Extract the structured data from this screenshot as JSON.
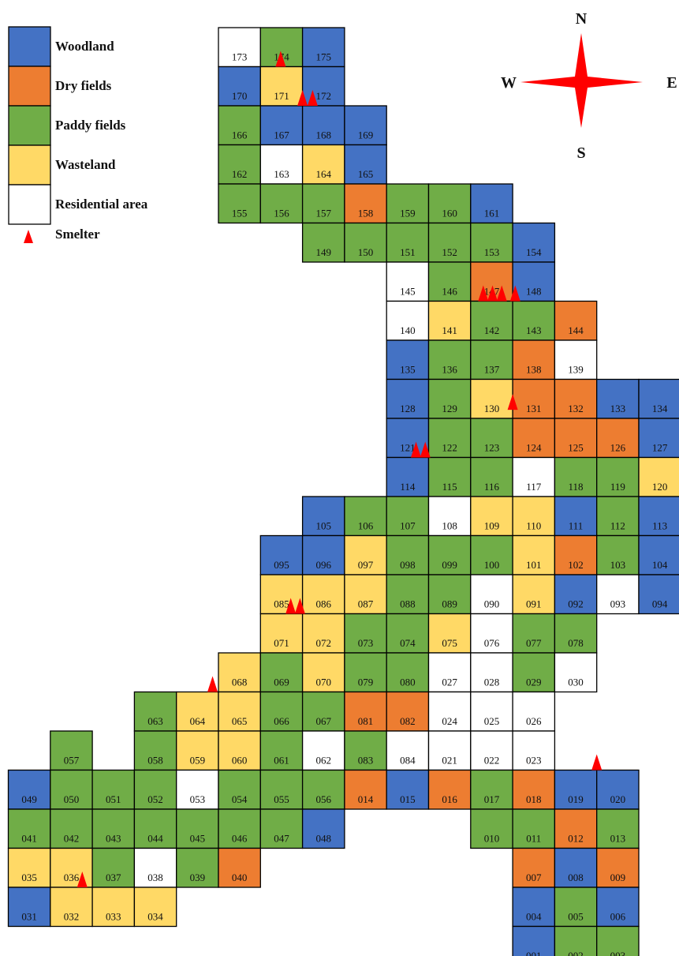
{
  "colors": {
    "woodland": "#4472c4",
    "dry": "#ed7d31",
    "paddy": "#70ad47",
    "waste": "#ffd966",
    "res": "#ffffff",
    "smelter": "#ff0000",
    "border": "#000000"
  },
  "legend": [
    {
      "key": "woodland",
      "label": "Woodland"
    },
    {
      "key": "dry",
      "label": "Dry fields"
    },
    {
      "key": "paddy",
      "label": "Paddy fields"
    },
    {
      "key": "waste",
      "label": "Wasteland"
    },
    {
      "key": "res",
      "label": "Residential area"
    },
    {
      "key": "smelter",
      "label": "Smelter",
      "icon": "smelter-triangle-icon"
    }
  ],
  "compass": {
    "icon": "compass-rose-icon",
    "n": "N",
    "s": "S",
    "w": "W",
    "e": "E"
  },
  "cells": [
    {
      "id": "173",
      "col": 0,
      "row": 0,
      "type": "res"
    },
    {
      "id": "174",
      "col": 1,
      "row": 0,
      "type": "paddy"
    },
    {
      "id": "175",
      "col": 2,
      "row": 0,
      "type": "woodland"
    },
    {
      "id": "170",
      "col": 0,
      "row": 1,
      "type": "woodland"
    },
    {
      "id": "171",
      "col": 1,
      "row": 1,
      "type": "waste"
    },
    {
      "id": "172",
      "col": 2,
      "row": 1,
      "type": "woodland"
    },
    {
      "id": "166",
      "col": 0,
      "row": 2,
      "type": "paddy"
    },
    {
      "id": "167",
      "col": 1,
      "row": 2,
      "type": "woodland"
    },
    {
      "id": "168",
      "col": 2,
      "row": 2,
      "type": "woodland"
    },
    {
      "id": "169",
      "col": 3,
      "row": 2,
      "type": "woodland"
    },
    {
      "id": "162",
      "col": 0,
      "row": 3,
      "type": "paddy"
    },
    {
      "id": "163",
      "col": 1,
      "row": 3,
      "type": "res"
    },
    {
      "id": "164",
      "col": 2,
      "row": 3,
      "type": "waste"
    },
    {
      "id": "165",
      "col": 3,
      "row": 3,
      "type": "woodland"
    },
    {
      "id": "155",
      "col": 0,
      "row": 4,
      "type": "paddy"
    },
    {
      "id": "156",
      "col": 1,
      "row": 4,
      "type": "paddy"
    },
    {
      "id": "157",
      "col": 2,
      "row": 4,
      "type": "paddy"
    },
    {
      "id": "158",
      "col": 3,
      "row": 4,
      "type": "dry"
    },
    {
      "id": "159",
      "col": 4,
      "row": 4,
      "type": "paddy"
    },
    {
      "id": "160",
      "col": 5,
      "row": 4,
      "type": "paddy"
    },
    {
      "id": "161",
      "col": 6,
      "row": 4,
      "type": "woodland"
    },
    {
      "id": "149",
      "col": 2,
      "row": 5,
      "type": "paddy"
    },
    {
      "id": "150",
      "col": 3,
      "row": 5,
      "type": "paddy"
    },
    {
      "id": "151",
      "col": 4,
      "row": 5,
      "type": "paddy"
    },
    {
      "id": "152",
      "col": 5,
      "row": 5,
      "type": "paddy"
    },
    {
      "id": "153",
      "col": 6,
      "row": 5,
      "type": "paddy"
    },
    {
      "id": "154",
      "col": 7,
      "row": 5,
      "type": "woodland"
    },
    {
      "id": "145",
      "col": 4,
      "row": 6,
      "type": "res"
    },
    {
      "id": "146",
      "col": 5,
      "row": 6,
      "type": "paddy"
    },
    {
      "id": "147",
      "col": 6,
      "row": 6,
      "type": "dry"
    },
    {
      "id": "148",
      "col": 7,
      "row": 6,
      "type": "woodland"
    },
    {
      "id": "140",
      "col": 4,
      "row": 7,
      "type": "res"
    },
    {
      "id": "141",
      "col": 5,
      "row": 7,
      "type": "waste"
    },
    {
      "id": "142",
      "col": 6,
      "row": 7,
      "type": "paddy"
    },
    {
      "id": "143",
      "col": 7,
      "row": 7,
      "type": "paddy"
    },
    {
      "id": "144",
      "col": 8,
      "row": 7,
      "type": "dry"
    },
    {
      "id": "135",
      "col": 4,
      "row": 8,
      "type": "woodland"
    },
    {
      "id": "136",
      "col": 5,
      "row": 8,
      "type": "paddy"
    },
    {
      "id": "137",
      "col": 6,
      "row": 8,
      "type": "paddy"
    },
    {
      "id": "138",
      "col": 7,
      "row": 8,
      "type": "dry"
    },
    {
      "id": "139",
      "col": 8,
      "row": 8,
      "type": "res"
    },
    {
      "id": "128",
      "col": 4,
      "row": 9,
      "type": "woodland"
    },
    {
      "id": "129",
      "col": 5,
      "row": 9,
      "type": "paddy"
    },
    {
      "id": "130",
      "col": 6,
      "row": 9,
      "type": "waste"
    },
    {
      "id": "131",
      "col": 7,
      "row": 9,
      "type": "dry"
    },
    {
      "id": "132",
      "col": 8,
      "row": 9,
      "type": "dry"
    },
    {
      "id": "133",
      "col": 9,
      "row": 9,
      "type": "woodland"
    },
    {
      "id": "134",
      "col": 10,
      "row": 9,
      "type": "woodland"
    },
    {
      "id": "121",
      "col": 4,
      "row": 10,
      "type": "woodland"
    },
    {
      "id": "122",
      "col": 5,
      "row": 10,
      "type": "paddy"
    },
    {
      "id": "123",
      "col": 6,
      "row": 10,
      "type": "paddy"
    },
    {
      "id": "124",
      "col": 7,
      "row": 10,
      "type": "dry"
    },
    {
      "id": "125",
      "col": 8,
      "row": 10,
      "type": "dry"
    },
    {
      "id": "126",
      "col": 9,
      "row": 10,
      "type": "dry"
    },
    {
      "id": "127",
      "col": 10,
      "row": 10,
      "type": "woodland"
    },
    {
      "id": "114",
      "col": 4,
      "row": 11,
      "type": "woodland"
    },
    {
      "id": "115",
      "col": 5,
      "row": 11,
      "type": "paddy"
    },
    {
      "id": "116",
      "col": 6,
      "row": 11,
      "type": "paddy"
    },
    {
      "id": "117",
      "col": 7,
      "row": 11,
      "type": "res"
    },
    {
      "id": "118",
      "col": 8,
      "row": 11,
      "type": "paddy"
    },
    {
      "id": "119",
      "col": 9,
      "row": 11,
      "type": "paddy"
    },
    {
      "id": "120",
      "col": 10,
      "row": 11,
      "type": "waste"
    },
    {
      "id": "105",
      "col": 2,
      "row": 12,
      "type": "woodland"
    },
    {
      "id": "106",
      "col": 3,
      "row": 12,
      "type": "paddy"
    },
    {
      "id": "107",
      "col": 4,
      "row": 12,
      "type": "paddy"
    },
    {
      "id": "108",
      "col": 5,
      "row": 12,
      "type": "res"
    },
    {
      "id": "109",
      "col": 6,
      "row": 12,
      "type": "waste"
    },
    {
      "id": "110",
      "col": 7,
      "row": 12,
      "type": "waste"
    },
    {
      "id": "111",
      "col": 8,
      "row": 12,
      "type": "woodland"
    },
    {
      "id": "112",
      "col": 9,
      "row": 12,
      "type": "paddy"
    },
    {
      "id": "113",
      "col": 10,
      "row": 12,
      "type": "woodland"
    },
    {
      "id": "095",
      "col": 1,
      "row": 13,
      "type": "woodland"
    },
    {
      "id": "096",
      "col": 2,
      "row": 13,
      "type": "woodland"
    },
    {
      "id": "097",
      "col": 3,
      "row": 13,
      "type": "waste"
    },
    {
      "id": "098",
      "col": 4,
      "row": 13,
      "type": "paddy"
    },
    {
      "id": "099",
      "col": 5,
      "row": 13,
      "type": "paddy"
    },
    {
      "id": "100",
      "col": 6,
      "row": 13,
      "type": "paddy"
    },
    {
      "id": "101",
      "col": 7,
      "row": 13,
      "type": "waste"
    },
    {
      "id": "102",
      "col": 8,
      "row": 13,
      "type": "dry"
    },
    {
      "id": "103",
      "col": 9,
      "row": 13,
      "type": "paddy"
    },
    {
      "id": "104",
      "col": 10,
      "row": 13,
      "type": "woodland"
    },
    {
      "id": "085",
      "col": 1,
      "row": 14,
      "type": "waste"
    },
    {
      "id": "086",
      "col": 2,
      "row": 14,
      "type": "waste"
    },
    {
      "id": "087",
      "col": 3,
      "row": 14,
      "type": "waste"
    },
    {
      "id": "088",
      "col": 4,
      "row": 14,
      "type": "paddy"
    },
    {
      "id": "089",
      "col": 5,
      "row": 14,
      "type": "paddy"
    },
    {
      "id": "090",
      "col": 6,
      "row": 14,
      "type": "res"
    },
    {
      "id": "091",
      "col": 7,
      "row": 14,
      "type": "waste"
    },
    {
      "id": "092",
      "col": 8,
      "row": 14,
      "type": "woodland"
    },
    {
      "id": "093",
      "col": 9,
      "row": 14,
      "type": "res"
    },
    {
      "id": "094",
      "col": 10,
      "row": 14,
      "type": "woodland"
    },
    {
      "id": "071",
      "col": 1,
      "row": 15,
      "type": "waste"
    },
    {
      "id": "072",
      "col": 2,
      "row": 15,
      "type": "waste"
    },
    {
      "id": "073",
      "col": 3,
      "row": 15,
      "type": "paddy"
    },
    {
      "id": "074",
      "col": 4,
      "row": 15,
      "type": "paddy"
    },
    {
      "id": "075",
      "col": 5,
      "row": 15,
      "type": "waste"
    },
    {
      "id": "076",
      "col": 6,
      "row": 15,
      "type": "res"
    },
    {
      "id": "077",
      "col": 7,
      "row": 15,
      "type": "paddy"
    },
    {
      "id": "078",
      "col": 8,
      "row": 15,
      "type": "paddy"
    },
    {
      "id": "068",
      "col": 0,
      "row": 16,
      "type": "waste"
    },
    {
      "id": "069",
      "col": 1,
      "row": 16,
      "type": "paddy"
    },
    {
      "id": "070",
      "col": 2,
      "row": 16,
      "type": "waste"
    },
    {
      "id": "079",
      "col": 3,
      "row": 16,
      "type": "paddy"
    },
    {
      "id": "080",
      "col": 4,
      "row": 16,
      "type": "paddy"
    },
    {
      "id": "027",
      "col": 5,
      "row": 16,
      "type": "res"
    },
    {
      "id": "028",
      "col": 6,
      "row": 16,
      "type": "res"
    },
    {
      "id": "029",
      "col": 7,
      "row": 16,
      "type": "paddy"
    },
    {
      "id": "030",
      "col": 8,
      "row": 16,
      "type": "res"
    },
    {
      "id": "063",
      "col": -2,
      "row": 17,
      "type": "paddy"
    },
    {
      "id": "064",
      "col": -1,
      "row": 17,
      "type": "waste"
    },
    {
      "id": "065",
      "col": 0,
      "row": 17,
      "type": "waste"
    },
    {
      "id": "066",
      "col": 1,
      "row": 17,
      "type": "paddy"
    },
    {
      "id": "067",
      "col": 2,
      "row": 17,
      "type": "paddy"
    },
    {
      "id": "081",
      "col": 3,
      "row": 17,
      "type": "dry"
    },
    {
      "id": "082",
      "col": 4,
      "row": 17,
      "type": "dry"
    },
    {
      "id": "024",
      "col": 5,
      "row": 17,
      "type": "res"
    },
    {
      "id": "025",
      "col": 6,
      "row": 17,
      "type": "res"
    },
    {
      "id": "026",
      "col": 7,
      "row": 17,
      "type": "res"
    },
    {
      "id": "057",
      "col": -4,
      "row": 18,
      "type": "paddy"
    },
    {
      "id": "058",
      "col": -2,
      "row": 18,
      "type": "paddy"
    },
    {
      "id": "059",
      "col": -1,
      "row": 18,
      "type": "waste"
    },
    {
      "id": "060",
      "col": 0,
      "row": 18,
      "type": "waste"
    },
    {
      "id": "061",
      "col": 1,
      "row": 18,
      "type": "paddy"
    },
    {
      "id": "062",
      "col": 2,
      "row": 18,
      "type": "res"
    },
    {
      "id": "083",
      "col": 3,
      "row": 18,
      "type": "paddy"
    },
    {
      "id": "084",
      "col": 4,
      "row": 18,
      "type": "res"
    },
    {
      "id": "021",
      "col": 5,
      "row": 18,
      "type": "res"
    },
    {
      "id": "022",
      "col": 6,
      "row": 18,
      "type": "res"
    },
    {
      "id": "023",
      "col": 7,
      "row": 18,
      "type": "res"
    },
    {
      "id": "049",
      "col": -5,
      "row": 19,
      "type": "woodland"
    },
    {
      "id": "050",
      "col": -4,
      "row": 19,
      "type": "paddy"
    },
    {
      "id": "051",
      "col": -3,
      "row": 19,
      "type": "paddy"
    },
    {
      "id": "052",
      "col": -2,
      "row": 19,
      "type": "paddy"
    },
    {
      "id": "053",
      "col": -1,
      "row": 19,
      "type": "res"
    },
    {
      "id": "054",
      "col": 0,
      "row": 19,
      "type": "paddy"
    },
    {
      "id": "055",
      "col": 1,
      "row": 19,
      "type": "paddy"
    },
    {
      "id": "056",
      "col": 2,
      "row": 19,
      "type": "paddy"
    },
    {
      "id": "014",
      "col": 3,
      "row": 19,
      "type": "dry"
    },
    {
      "id": "015",
      "col": 4,
      "row": 19,
      "type": "woodland"
    },
    {
      "id": "016",
      "col": 5,
      "row": 19,
      "type": "dry"
    },
    {
      "id": "017",
      "col": 6,
      "row": 19,
      "type": "paddy"
    },
    {
      "id": "018",
      "col": 7,
      "row": 19,
      "type": "dry"
    },
    {
      "id": "019",
      "col": 8,
      "row": 19,
      "type": "woodland"
    },
    {
      "id": "020",
      "col": 9,
      "row": 19,
      "type": "woodland"
    },
    {
      "id": "041",
      "col": -5,
      "row": 20,
      "type": "paddy"
    },
    {
      "id": "042",
      "col": -4,
      "row": 20,
      "type": "paddy"
    },
    {
      "id": "043",
      "col": -3,
      "row": 20,
      "type": "paddy"
    },
    {
      "id": "044",
      "col": -2,
      "row": 20,
      "type": "paddy"
    },
    {
      "id": "045",
      "col": -1,
      "row": 20,
      "type": "paddy"
    },
    {
      "id": "046",
      "col": 0,
      "row": 20,
      "type": "paddy"
    },
    {
      "id": "047",
      "col": 1,
      "row": 20,
      "type": "paddy"
    },
    {
      "id": "048",
      "col": 2,
      "row": 20,
      "type": "woodland"
    },
    {
      "id": "010",
      "col": 6,
      "row": 20,
      "type": "paddy"
    },
    {
      "id": "011",
      "col": 7,
      "row": 20,
      "type": "paddy"
    },
    {
      "id": "012",
      "col": 8,
      "row": 20,
      "type": "dry"
    },
    {
      "id": "013",
      "col": 9,
      "row": 20,
      "type": "paddy"
    },
    {
      "id": "035",
      "col": -5,
      "row": 21,
      "type": "waste"
    },
    {
      "id": "036",
      "col": -4,
      "row": 21,
      "type": "waste"
    },
    {
      "id": "037",
      "col": -3,
      "row": 21,
      "type": "paddy"
    },
    {
      "id": "038",
      "col": -2,
      "row": 21,
      "type": "res"
    },
    {
      "id": "039",
      "col": -1,
      "row": 21,
      "type": "paddy"
    },
    {
      "id": "040",
      "col": 0,
      "row": 21,
      "type": "dry"
    },
    {
      "id": "007",
      "col": 7,
      "row": 21,
      "type": "dry"
    },
    {
      "id": "008",
      "col": 8,
      "row": 21,
      "type": "woodland"
    },
    {
      "id": "009",
      "col": 9,
      "row": 21,
      "type": "dry"
    },
    {
      "id": "031",
      "col": -5,
      "row": 22,
      "type": "woodland"
    },
    {
      "id": "032",
      "col": -4,
      "row": 22,
      "type": "waste"
    },
    {
      "id": "033",
      "col": -3,
      "row": 22,
      "type": "waste"
    },
    {
      "id": "034",
      "col": -2,
      "row": 22,
      "type": "waste"
    },
    {
      "id": "004",
      "col": 7,
      "row": 22,
      "type": "woodland"
    },
    {
      "id": "005",
      "col": 8,
      "row": 22,
      "type": "paddy"
    },
    {
      "id": "006",
      "col": 9,
      "row": 22,
      "type": "woodland"
    },
    {
      "id": "001",
      "col": 7,
      "row": 23,
      "type": "woodland"
    },
    {
      "id": "002",
      "col": 8,
      "row": 23,
      "type": "paddy"
    },
    {
      "id": "003",
      "col": 9,
      "row": 23,
      "type": "paddy"
    }
  ],
  "smelters": [
    {
      "col": 1,
      "row": 1,
      "fx": 0.48,
      "fy": 0.0
    },
    {
      "col": 2,
      "row": 2,
      "fx": 0.0,
      "fy": 0.0
    },
    {
      "col": 2,
      "row": 2,
      "fx": 0.24,
      "fy": 0.0
    },
    {
      "col": 6,
      "row": 7,
      "fx": 0.3,
      "fy": 0.0
    },
    {
      "col": 6,
      "row": 7,
      "fx": 0.52,
      "fy": 0.0
    },
    {
      "col": 6,
      "row": 7,
      "fx": 0.74,
      "fy": 0.0
    },
    {
      "col": 7,
      "row": 7,
      "fx": 0.06,
      "fy": 0.0
    },
    {
      "col": 7,
      "row": 10,
      "fx": 0.0,
      "fy": -0.22
    },
    {
      "col": 4,
      "row": 11,
      "fx": 0.7,
      "fy": 0.0
    },
    {
      "col": 4,
      "row": 11,
      "fx": 0.92,
      "fy": 0.0
    },
    {
      "col": 1,
      "row": 15,
      "fx": 0.72,
      "fy": 0.0
    },
    {
      "col": 1,
      "row": 15,
      "fx": 0.94,
      "fy": 0.0
    },
    {
      "col": -1,
      "row": 17,
      "fx": 0.86,
      "fy": 0.0
    },
    {
      "col": 9,
      "row": 19,
      "fx": 0.0,
      "fy": 0.0
    },
    {
      "col": -4,
      "row": 22,
      "fx": 0.76,
      "fy": 0.0
    }
  ]
}
